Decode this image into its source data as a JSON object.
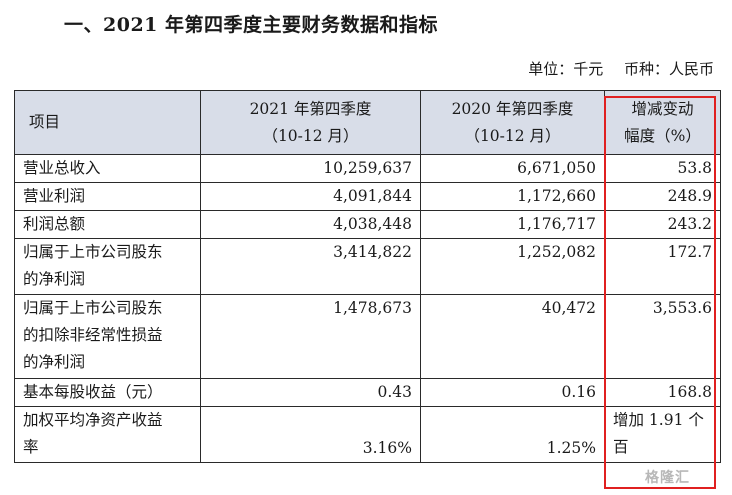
{
  "title": "一、2021 年第四季度主要财务数据和指标",
  "unit": {
    "unit_label": "单位：千元",
    "currency_label": "币种：人民币"
  },
  "table": {
    "headers": [
      [
        "项目"
      ],
      [
        "2021 年第四季度",
        "（10-12 月）"
      ],
      [
        "2020 年第四季度",
        "（10-12 月）"
      ],
      [
        "增减变动",
        "幅度（%）"
      ]
    ],
    "rows": [
      {
        "label": [
          "营业总收入"
        ],
        "y2021": "10,259,637",
        "y2020": "6,671,050",
        "change": [
          "53.8"
        ]
      },
      {
        "label": [
          "营业利润"
        ],
        "y2021": "4,091,844",
        "y2020": "1,172,660",
        "change": [
          "248.9"
        ]
      },
      {
        "label": [
          "利润总额"
        ],
        "y2021": "4,038,448",
        "y2020": "1,176,717",
        "change": [
          "243.2"
        ]
      },
      {
        "label": [
          "归属于上市公司股东",
          "的净利润"
        ],
        "y2021": "3,414,822",
        "y2020": "1,252,082",
        "change": [
          "172.7"
        ]
      },
      {
        "label": [
          "归属于上市公司股东",
          "的扣除非经常性损益",
          "的净利润"
        ],
        "y2021": "1,478,673",
        "y2020": "40,472",
        "change": [
          "3,553.6"
        ]
      },
      {
        "label": [
          "基本每股收益（元）"
        ],
        "y2021": "0.43",
        "y2020": "0.16",
        "change": [
          "168.8"
        ]
      },
      {
        "label": [
          "加权平均净资产收益",
          "率"
        ],
        "y2021": "3.16%",
        "y2020": "1.25%",
        "change": [
          "增加 1.91 个",
          "百"
        ]
      }
    ]
  },
  "watermark": "格隆汇",
  "colors": {
    "header_bg": "#d8dde8",
    "highlight_border": "#e02020"
  }
}
